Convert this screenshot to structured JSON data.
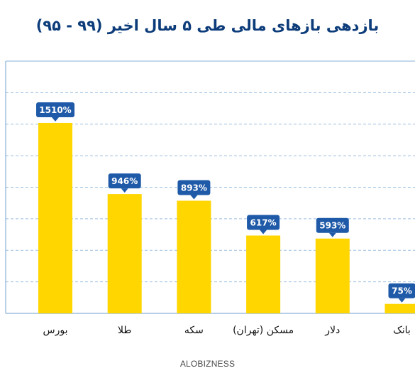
{
  "title": "بازدهی بازهای مالی طی ۵ سال اخیر (۹۹ - ۹۵)",
  "watermark": "ALOBIZNESS",
  "colors": {
    "bar": "#ffd600",
    "label_bg": "#1f5aa8",
    "label_text": "#ffffff",
    "grid": "#9dbfdf",
    "axis": "#8ab0d8",
    "title": "#0d3c7a",
    "category_text": "#111111"
  },
  "chart_data": {
    "type": "bar",
    "title": "بازدهی بازهای مالی طی ۵ سال اخیر (۹۹ - ۹۵)",
    "xlabel": "",
    "ylabel": "",
    "categories": [
      "بورس",
      "طلا",
      "سکه",
      "مسکن (تهران)",
      "دلار",
      "بانک"
    ],
    "values": [
      1510,
      946,
      893,
      617,
      593,
      75
    ],
    "data_labels": [
      "1510%",
      "946%",
      "893%",
      "617%",
      "593%",
      "75%"
    ],
    "ylim": [
      0,
      2000
    ],
    "grid": true,
    "legend": "none"
  }
}
